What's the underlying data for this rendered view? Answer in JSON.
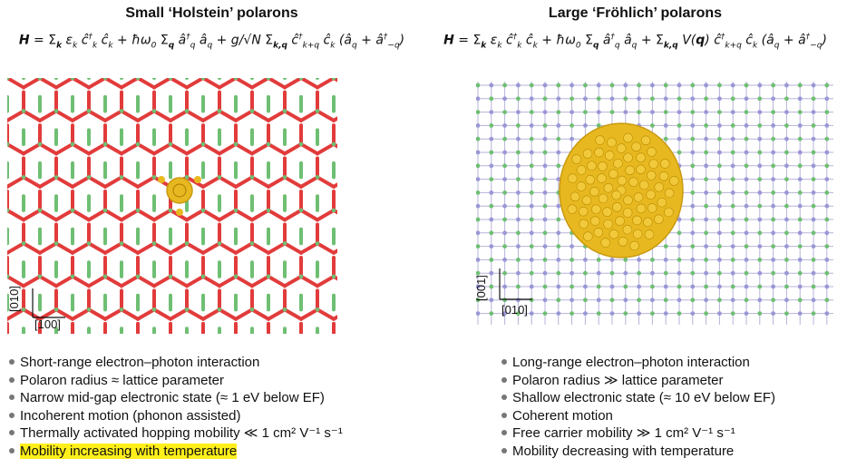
{
  "left": {
    "title": "Small ‘Holstein’ polarons",
    "equation": "H = Σk εk ĉ†k ĉk + ħω0 Σq â†q âq + g/√N Σk,q ĉ†k+q ĉk (âq + â†−q)",
    "axis_vertical": "[010]",
    "axis_horizontal": "[100]",
    "bullets": [
      "Short-range electron–photon interaction",
      "Polaron radius ≈ lattice parameter",
      "Narrow mid-gap electronic state (≈ 1 eV below EF)",
      "Incoherent motion (phonon assisted)",
      "Thermally activated hopping mobility ≪ 1 cm² V⁻¹ s⁻¹",
      "Mobility increasing with temperature"
    ],
    "highlighted_bullet_index": 5,
    "highlight_color": "#ffef1a",
    "colors": {
      "bond_red": "#e23b3b",
      "bond_green": "#6fbf73",
      "polaron": "#e8b820"
    }
  },
  "right": {
    "title": "Large ‘Fröhlich’ polarons",
    "equation": "H = Σk εk ĉ†k ĉk + ħω0 Σq â†q âq + Σk,q V(q) ĉ†k+q ĉk (âq + â†−q)",
    "axis_vertical": "[001]",
    "axis_horizontal": "[010]",
    "bullets": [
      "Long-range electron–photon interaction",
      "Polaron radius ≫ lattice parameter",
      "Shallow electronic state (≈ 10 eV below EF)",
      "Coherent motion",
      "Free carrier mobility ≫ 1 cm² V⁻¹ s⁻¹",
      "Mobility decreasing with temperature"
    ],
    "colors": {
      "grid_line": "#b7b3d9",
      "node_green": "#6fbf73",
      "node_blue": "#9a97d6",
      "polaron": "#e8b820"
    }
  }
}
